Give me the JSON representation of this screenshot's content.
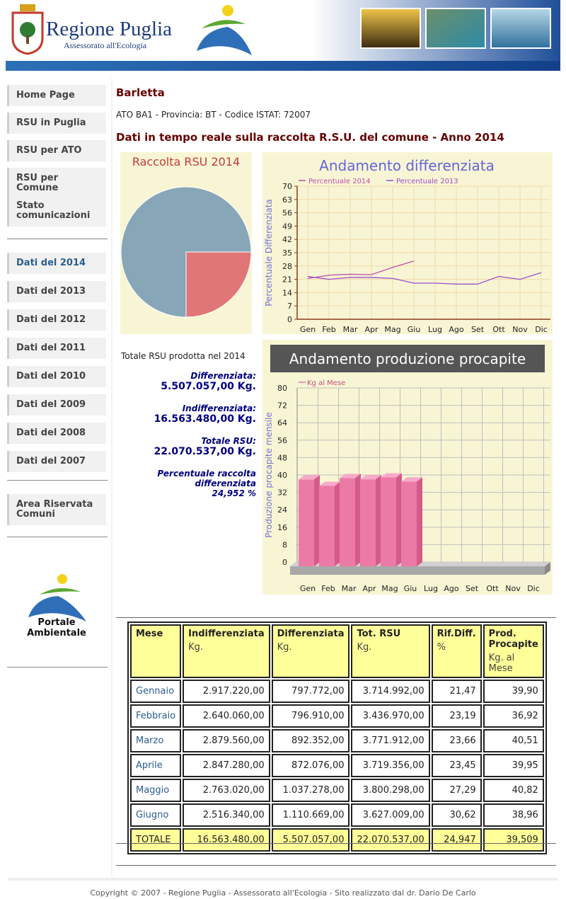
{
  "header": {
    "title": "Regione Puglia",
    "subtitle": "Assessorato all'Ecologia"
  },
  "nav": [
    [
      "Home Page",
      "RSU in Puglia",
      "RSU per ATO",
      "RSU per Comune",
      "Stato comunicazioni"
    ],
    [
      "Dati del 2014",
      "Dati del 2013",
      "Dati del 2012",
      "Dati del 2011",
      "Dati del 2010",
      "Dati del 2009",
      "Dati del 2008",
      "Dati del 2007"
    ],
    [
      "Area Riservata Comuni"
    ]
  ],
  "portal_logo": "Portale Ambientale",
  "city": "Barletta",
  "info": "ATO BA1 - Provincia: BT - Codice ISTAT: 72007",
  "heading": "Dati in tempo reale sulla raccolta R.S.U. del comune - Anno 2014",
  "chart_data": [
    {
      "type": "pie",
      "title": "Raccolta RSU 2014",
      "values": [
        25,
        75
      ],
      "colors": [
        "#e07676",
        "#87a6b8"
      ]
    },
    {
      "type": "line",
      "title": "Andamento differenziata",
      "y_label": "Percentuale Differenziata",
      "categories": [
        "Gen",
        "Feb",
        "Mar",
        "Apr",
        "Mag",
        "Giu",
        "Lug",
        "Ago",
        "Set",
        "Ott",
        "Nov",
        "Dic"
      ],
      "series": [
        {
          "name": "Percentuale 2014",
          "color": "#c24fae",
          "values": [
            21.47,
            23.19,
            23.66,
            23.45,
            27.29,
            30.62,
            null,
            null,
            null,
            null,
            null,
            null
          ]
        },
        {
          "name": "Percentuale 2013",
          "color": "#9b4fd0",
          "values": [
            22.5,
            21,
            22,
            22,
            21.5,
            19,
            19,
            18.5,
            18.5,
            22.5,
            21,
            24.5
          ]
        }
      ],
      "ylim": [
        0,
        70
      ],
      "yticks": [
        0,
        7,
        14,
        21,
        28,
        35,
        42,
        49,
        56,
        63,
        70
      ],
      "grid": true
    },
    {
      "type": "bar",
      "title": "Andamento produzione procapite",
      "y_label": "Produzione procapite mensile",
      "categories": [
        "Gen",
        "Feb",
        "Mar",
        "Apr",
        "Mag",
        "Giu",
        "Lug",
        "Ago",
        "Set",
        "Ott",
        "Nov",
        "Dic"
      ],
      "series": [
        {
          "name": "Kg al Mese",
          "color": "#ec7aa6",
          "values": [
            39.9,
            36.92,
            40.51,
            39.95,
            40.82,
            38.96,
            null,
            null,
            null,
            null,
            null,
            null
          ]
        }
      ],
      "ylim": [
        0,
        80
      ],
      "yticks": [
        0,
        8,
        16,
        24,
        32,
        40,
        48,
        56,
        64,
        72,
        80
      ],
      "grid": true
    }
  ],
  "summary": {
    "title": "Totale RSU prodotta nel 2014",
    "items": [
      {
        "label": "Differenziata:",
        "value": "5.507.057,00 Kg."
      },
      {
        "label": "Indifferenziata:",
        "value": "16.563.480,00 Kg."
      },
      {
        "label": "Totale RSU:",
        "value": "22.070.537,00 Kg."
      },
      {
        "label": "Percentuale raccolta differenziata",
        "value": "24,952 %"
      }
    ]
  },
  "table": {
    "columns": [
      {
        "name": "Mese"
      },
      {
        "name": "Indifferenziata",
        "unit": "Kg."
      },
      {
        "name": "Differenziata",
        "unit": "Kg."
      },
      {
        "name": "Tot. RSU",
        "unit": "Kg."
      },
      {
        "name": "Rif.Diff.",
        "unit": "%"
      },
      {
        "name": "Prod. Procapite",
        "unit": "Kg. al Mese"
      }
    ],
    "rows": [
      [
        "Gennaio",
        "2.917.220,00",
        "797.772,00",
        "3.714.992,00",
        "21,47",
        "39,90"
      ],
      [
        "Febbraio",
        "2.640.060,00",
        "796.910,00",
        "3.436.970,00",
        "23,19",
        "36,92"
      ],
      [
        "Marzo",
        "2.879.560,00",
        "892.352,00",
        "3.771.912,00",
        "23,66",
        "40,51"
      ],
      [
        "Aprile",
        "2.847.280,00",
        "872.076,00",
        "3.719.356,00",
        "23,45",
        "39,95"
      ],
      [
        "Maggio",
        "2.763.020,00",
        "1.037.278,00",
        "3.800.298,00",
        "27,29",
        "40,82"
      ],
      [
        "Giugno",
        "2.516.340,00",
        "1.110.669,00",
        "3.627.009,00",
        "30,62",
        "38,96"
      ],
      [
        "TOTALE",
        "16.563.480,00",
        "5.507.057,00",
        "22.070.537,00",
        "24,947",
        "39,509"
      ]
    ]
  },
  "footer": "Copyright © 2007 - Regione Puglia - Assessorato all'Ecologia - Sito realizzato dal dr. Dario De Carlo"
}
